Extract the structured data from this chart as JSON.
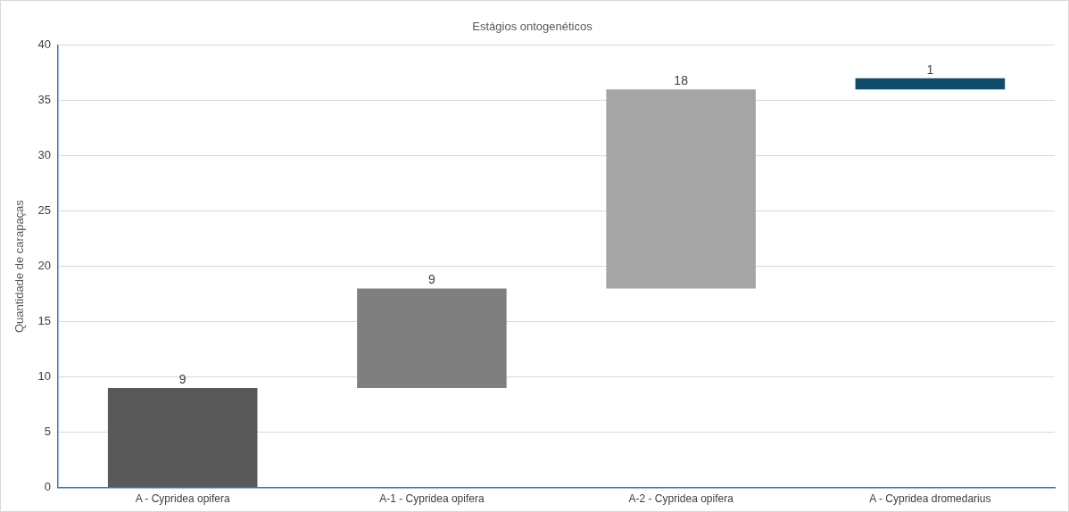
{
  "chart_data": {
    "type": "bar",
    "title": "Estágios ontogenéticos",
    "ylabel": "Quantidade de carapaças",
    "categories": [
      "A - Cypridea opifera",
      "A-1 - Cypridea opifera",
      "A-2 - Cypridea opifera",
      "A - Cypridea dromedarius"
    ],
    "values": [
      9,
      9,
      18,
      1
    ],
    "base": [
      0,
      9,
      18,
      36
    ],
    "colors": [
      "#595959",
      "#7f7f7f",
      "#a5a5a5",
      "#0f4c6b"
    ],
    "ylim": [
      0,
      40
    ],
    "yticks": [
      0,
      5,
      10,
      15,
      20,
      25,
      30,
      35,
      40
    ],
    "grid": "y",
    "data_labels": true,
    "legend": false
  }
}
